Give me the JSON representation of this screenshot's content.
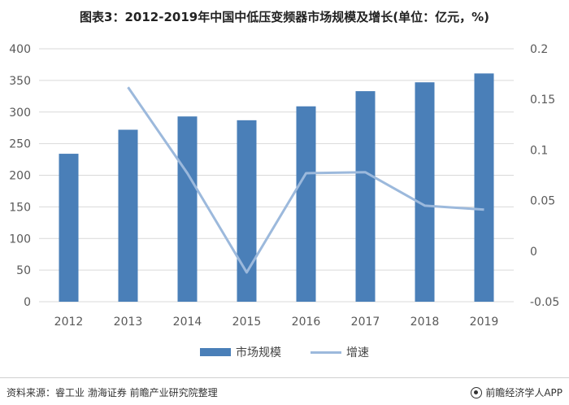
{
  "title": "图表3：2012-2019年中国中低压变频器市场规模及增长(单位：亿元，%)",
  "legend": {
    "bar_label": "市场规模",
    "line_label": "增速"
  },
  "footer": {
    "source": "资料来源：睿工业 渤海证券 前瞻产业研究院整理",
    "brand": "前瞻经济学人APP"
  },
  "colors": {
    "bar": "#4a7fb8",
    "line": "#9cb9dc",
    "grid": "#d9d9d9",
    "axis_text": "#595959"
  },
  "chart_data": {
    "type": "bar",
    "title": "图表3：2012-2019年中国中低压变频器市场规模及增长(单位：亿元，%)",
    "categories": [
      "2012",
      "2013",
      "2014",
      "2015",
      "2016",
      "2017",
      "2018",
      "2019"
    ],
    "series": [
      {
        "name": "市场规模",
        "type": "bar",
        "axis": "left",
        "values": [
          234,
          272,
          293,
          287,
          309,
          333,
          347,
          361
        ]
      },
      {
        "name": "增速",
        "type": "line",
        "axis": "right",
        "values": [
          null,
          0.162,
          0.077,
          -0.021,
          0.077,
          0.078,
          0.045,
          0.041
        ]
      }
    ],
    "y_left": {
      "min": 0,
      "max": 400,
      "ticks": [
        "0",
        "50",
        "100",
        "150",
        "200",
        "250",
        "300",
        "350",
        "400"
      ]
    },
    "y_right": {
      "min": -0.05,
      "max": 0.2,
      "ticks": [
        "-0.05",
        "0",
        "0.05",
        "0.1",
        "0.15",
        "0.2"
      ]
    },
    "grid": true,
    "legend_position": "bottom"
  }
}
